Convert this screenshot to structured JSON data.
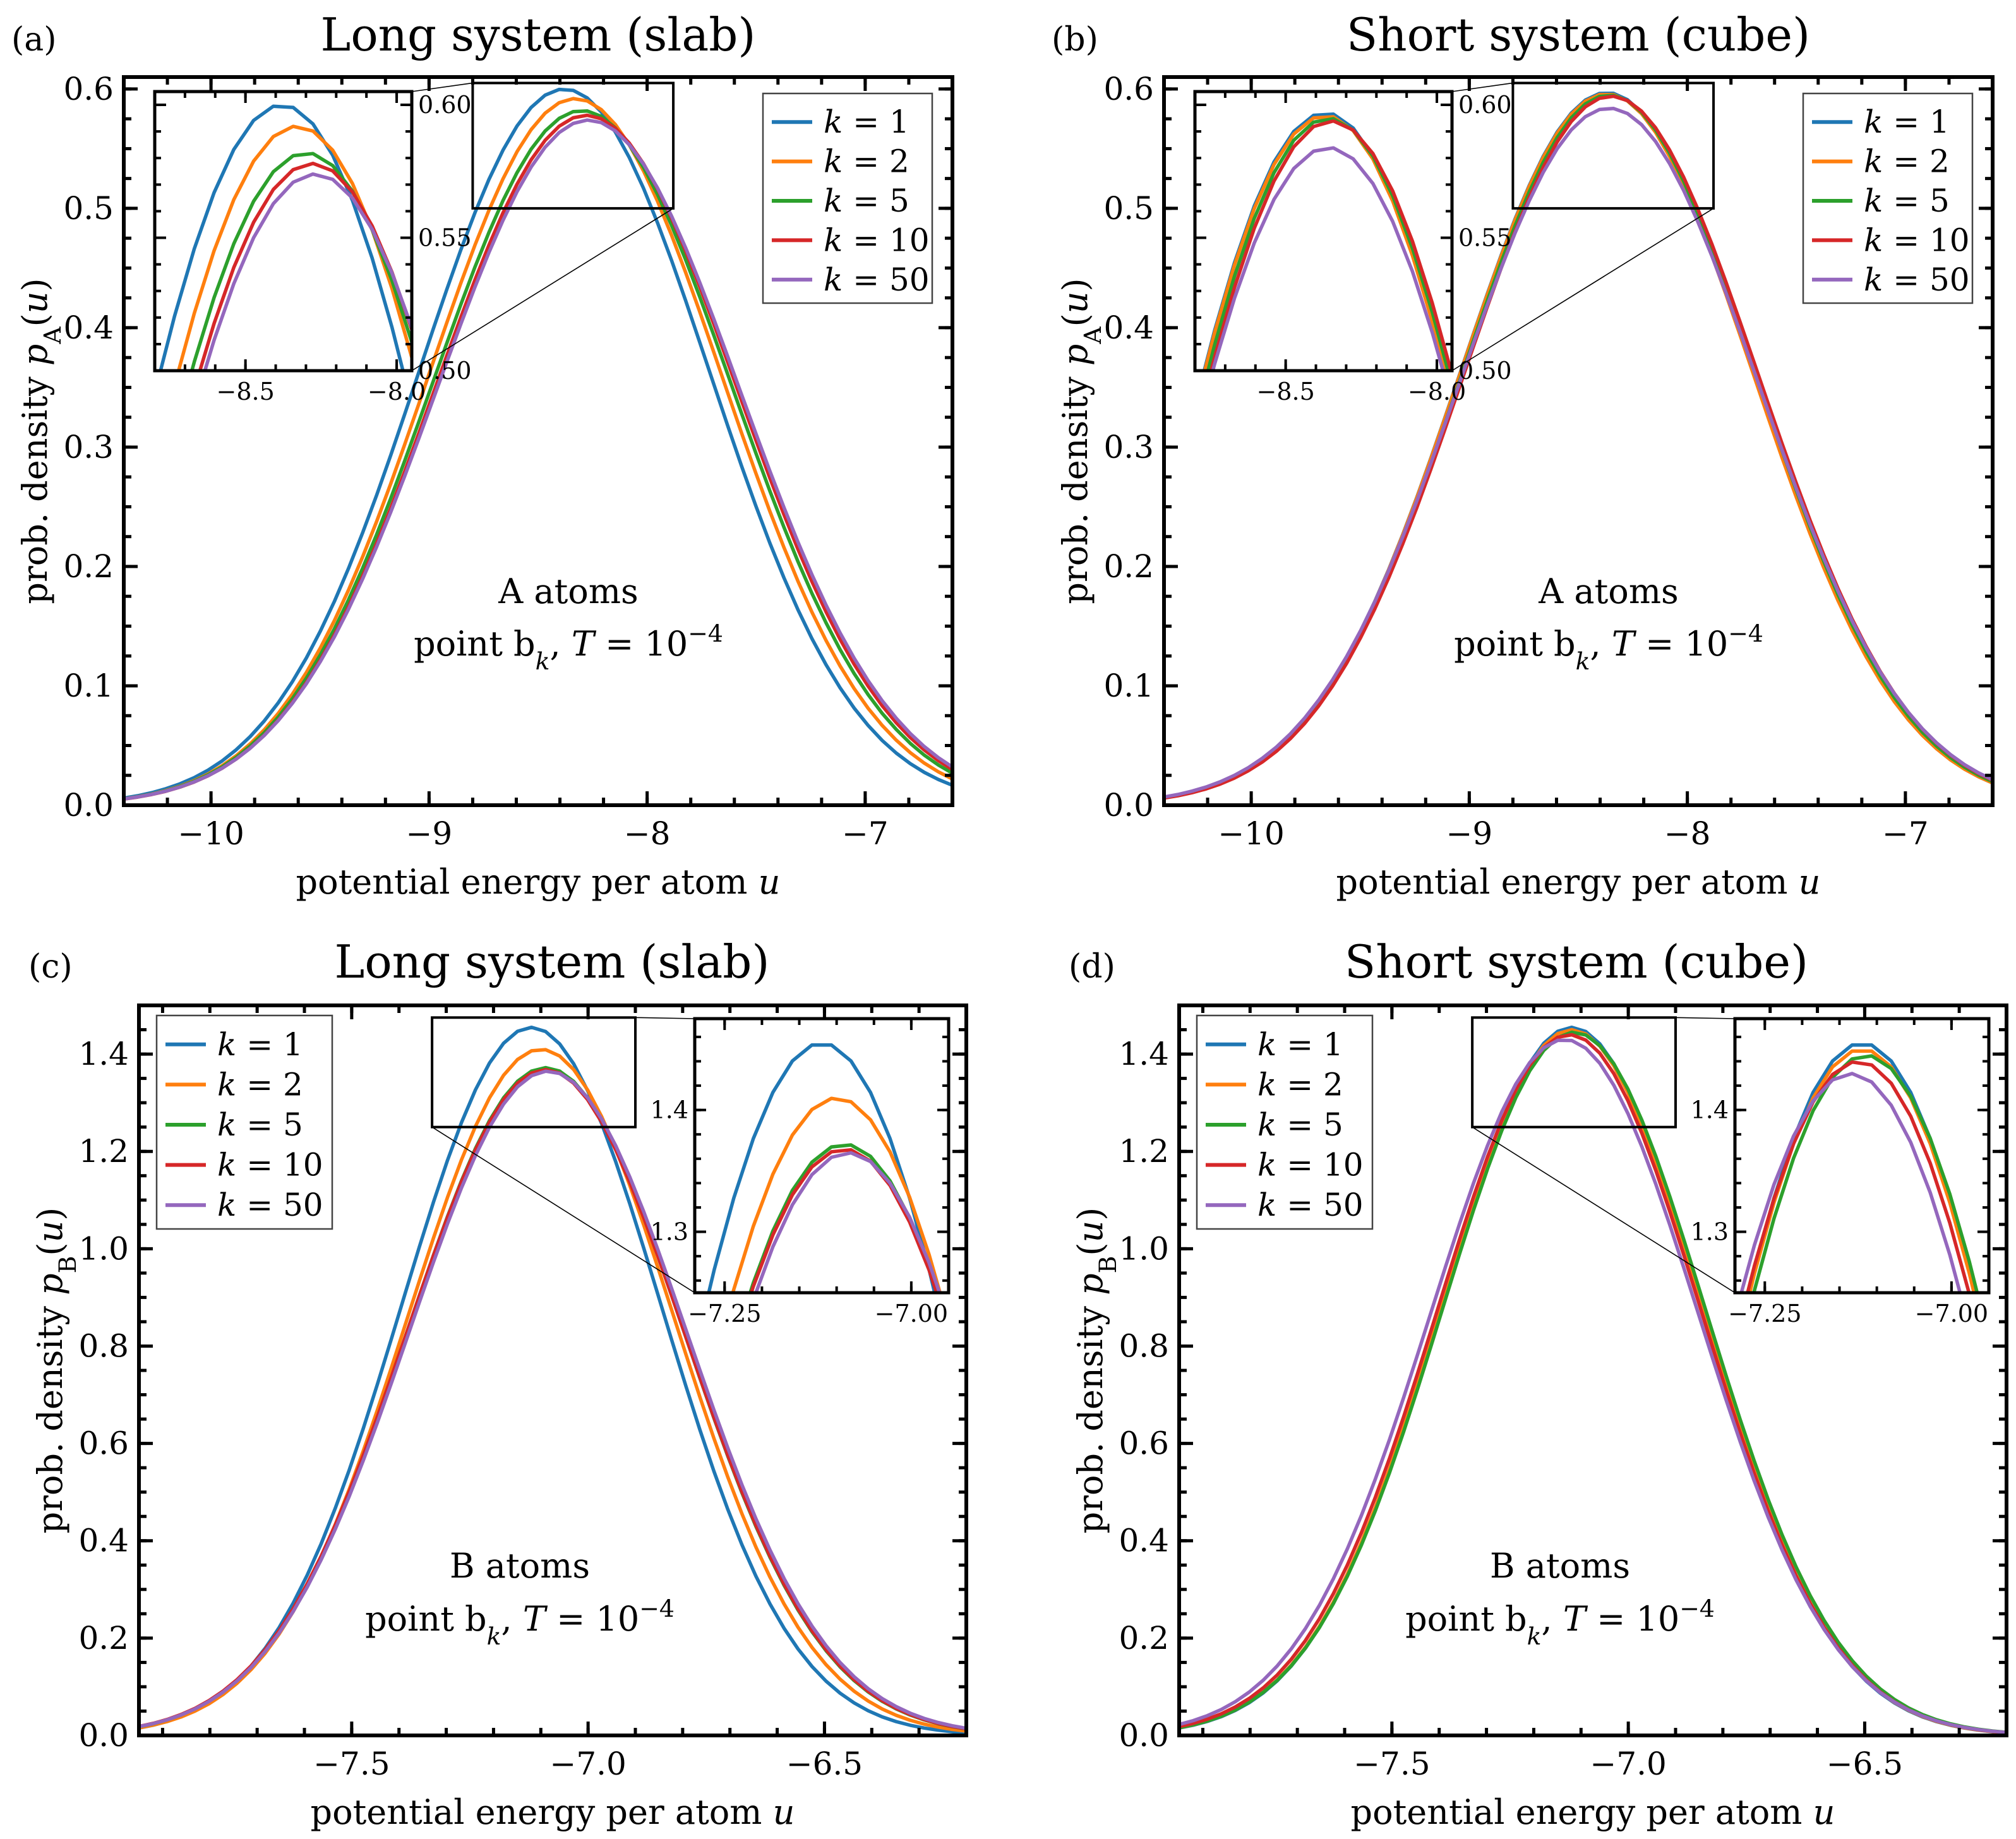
{
  "figure": {
    "colors": {
      "k1": "#1f77b4",
      "k2": "#ff7f0e",
      "k5": "#2ca02c",
      "k10": "#d62728",
      "k50": "#9467bd"
    }
  },
  "chart_data": [
    {
      "type": "line",
      "panel_label": "(a)",
      "title": "Long system (slab)",
      "xlabel": "potential energy per atom u",
      "ylabel": "prob. density pA(u)",
      "xlim": [
        -10.4,
        -6.6
      ],
      "ylim": [
        0.0,
        0.61
      ],
      "xticks": [
        -10,
        -9,
        -8,
        -7
      ],
      "xtick_labels": [
        "−10",
        "−9",
        "−8",
        "−7"
      ],
      "yticks": [
        0.0,
        0.1,
        0.2,
        0.3,
        0.4,
        0.5,
        0.6
      ],
      "ytick_labels": [
        "0.0",
        "0.1",
        "0.2",
        "0.3",
        "0.4",
        "0.5",
        "0.6"
      ],
      "legend_position": "top-right",
      "annotation": [
        "A atoms",
        "point bk, T = 10−4"
      ],
      "series": [
        {
          "name": "k = 1",
          "mu": -8.38,
          "sigma": 0.665,
          "peak": 0.6
        },
        {
          "name": "k = 2",
          "mu": -8.33,
          "sigma": 0.674,
          "peak": 0.592
        },
        {
          "name": "k = 5",
          "mu": -8.3,
          "sigma": 0.685,
          "peak": 0.582
        },
        {
          "name": "k = 10",
          "mu": -8.28,
          "sigma": 0.69,
          "peak": 0.578
        },
        {
          "name": "k = 50",
          "mu": -8.27,
          "sigma": 0.695,
          "peak": 0.574
        }
      ],
      "zoom_box": {
        "xlim": [
          -8.8,
          -7.88
        ],
        "ylim": [
          0.5,
          0.605
        ]
      },
      "inset": {
        "position": "top-left",
        "xlim": [
          -8.8,
          -7.95
        ],
        "ylim": [
          0.5,
          0.605
        ],
        "xticks": [
          -8.5,
          -8.0
        ],
        "xtick_labels": [
          "−8.5",
          "−8.0"
        ],
        "yticks": [
          0.5,
          0.55,
          0.6
        ],
        "ytick_labels": [
          "0.50",
          "0.55",
          "0.60"
        ]
      }
    },
    {
      "type": "line",
      "panel_label": "(b)",
      "title": "Short system (cube)",
      "xlabel": "potential energy per atom u",
      "ylabel": "prob. density pA(u)",
      "xlim": [
        -10.4,
        -6.6
      ],
      "ylim": [
        0.0,
        0.61
      ],
      "xticks": [
        -10,
        -9,
        -8,
        -7
      ],
      "xtick_labels": [
        "−10",
        "−9",
        "−8",
        "−7"
      ],
      "yticks": [
        0.0,
        0.1,
        0.2,
        0.3,
        0.4,
        0.5,
        0.6
      ],
      "ytick_labels": [
        "0.0",
        "0.1",
        "0.2",
        "0.3",
        "0.4",
        "0.5",
        "0.6"
      ],
      "legend_position": "top-right",
      "annotation": [
        "A atoms",
        "point bk, T = 10−4"
      ],
      "series": [
        {
          "name": "k = 1",
          "mu": -8.37,
          "sigma": 0.672,
          "peak": 0.597
        },
        {
          "name": "k = 2",
          "mu": -8.37,
          "sigma": 0.672,
          "peak": 0.596
        },
        {
          "name": "k = 5",
          "mu": -8.36,
          "sigma": 0.674,
          "peak": 0.595
        },
        {
          "name": "k = 10",
          "mu": -8.35,
          "sigma": 0.676,
          "peak": 0.594
        },
        {
          "name": "k = 50",
          "mu": -8.36,
          "sigma": 0.684,
          "peak": 0.584
        }
      ],
      "zoom_box": {
        "xlim": [
          -8.8,
          -7.88
        ],
        "ylim": [
          0.5,
          0.605
        ]
      },
      "inset": {
        "position": "top-left",
        "xlim": [
          -8.8,
          -7.95
        ],
        "ylim": [
          0.5,
          0.605
        ],
        "xticks": [
          -8.5,
          -8.0
        ],
        "xtick_labels": [
          "−8.5",
          "−8.0"
        ],
        "yticks": [
          0.5,
          0.55,
          0.6
        ],
        "ytick_labels": [
          "0.50",
          "0.55",
          "0.60"
        ]
      }
    },
    {
      "type": "line",
      "panel_label": "(c)",
      "title": "Long system (slab)",
      "xlabel": "potential energy per atom u",
      "ylabel": "prob. density pB(u)",
      "xlim": [
        -7.95,
        -6.2
      ],
      "ylim": [
        0.0,
        1.5
      ],
      "xticks": [
        -7.5,
        -7.0,
        -6.5
      ],
      "xtick_labels": [
        "−7.5",
        "−7.0",
        "−6.5"
      ],
      "yticks": [
        0.0,
        0.2,
        0.4,
        0.6,
        0.8,
        1.0,
        1.2,
        1.4
      ],
      "ytick_labels": [
        "0.0",
        "0.2",
        "0.4",
        "0.6",
        "0.8",
        "1.0",
        "1.2",
        "1.4"
      ],
      "legend_position": "top-left",
      "annotation": [
        "B atoms",
        "point bk, T = 10−4"
      ],
      "series": [
        {
          "name": "k = 1",
          "mu": -7.12,
          "sigma": 0.275,
          "peak": 1.455
        },
        {
          "name": "k = 2",
          "mu": -7.1,
          "sigma": 0.283,
          "peak": 1.41
        },
        {
          "name": "k = 5",
          "mu": -7.09,
          "sigma": 0.292,
          "peak": 1.372
        },
        {
          "name": "k = 10",
          "mu": -7.09,
          "sigma": 0.293,
          "peak": 1.368
        },
        {
          "name": "k = 50",
          "mu": -7.085,
          "sigma": 0.294,
          "peak": 1.365
        }
      ],
      "zoom_box": {
        "xlim": [
          -7.33,
          -6.9
        ],
        "ylim": [
          1.25,
          1.475
        ]
      },
      "inset": {
        "position": "top-right",
        "xlim": [
          -7.29,
          -6.95
        ],
        "ylim": [
          1.25,
          1.475
        ],
        "xticks": [
          -7.25,
          -7.0
        ],
        "xtick_labels": [
          "−7.25",
          "−7.00"
        ],
        "yticks": [
          1.3,
          1.4
        ],
        "ytick_labels": [
          "1.3",
          "1.4"
        ]
      }
    },
    {
      "type": "line",
      "panel_label": "(d)",
      "title": "Short system (cube)",
      "xlabel": "potential energy per atom u",
      "ylabel": "prob. density pB(u)",
      "xlim": [
        -7.95,
        -6.2
      ],
      "ylim": [
        0.0,
        1.5
      ],
      "xticks": [
        -7.5,
        -7.0,
        -6.5
      ],
      "xtick_labels": [
        "−7.5",
        "−7.0",
        "−6.5"
      ],
      "yticks": [
        0.0,
        0.2,
        0.4,
        0.6,
        0.8,
        1.0,
        1.2,
        1.4
      ],
      "ytick_labels": [
        "0.0",
        "0.2",
        "0.4",
        "0.6",
        "0.8",
        "1.0",
        "1.2",
        "1.4"
      ],
      "legend_position": "top-left",
      "annotation": [
        "B atoms",
        "point bk, T = 10−4"
      ],
      "series": [
        {
          "name": "k = 1",
          "mu": -7.12,
          "sigma": 0.275,
          "peak": 1.455
        },
        {
          "name": "k = 2",
          "mu": -7.12,
          "sigma": 0.276,
          "peak": 1.45
        },
        {
          "name": "k = 5",
          "mu": -7.115,
          "sigma": 0.278,
          "peak": 1.445
        },
        {
          "name": "k = 10",
          "mu": -7.125,
          "sigma": 0.279,
          "peak": 1.44
        },
        {
          "name": "k = 50",
          "mu": -7.135,
          "sigma": 0.283,
          "peak": 1.43
        }
      ],
      "zoom_box": {
        "xlim": [
          -7.33,
          -6.9
        ],
        "ylim": [
          1.25,
          1.475
        ]
      },
      "inset": {
        "position": "top-right",
        "xlim": [
          -7.29,
          -6.95
        ],
        "ylim": [
          1.25,
          1.475
        ],
        "xticks": [
          -7.25,
          -7.0
        ],
        "xtick_labels": [
          "−7.25",
          "−7.00"
        ],
        "yticks": [
          1.3,
          1.4
        ],
        "ytick_labels": [
          "1.3",
          "1.4"
        ]
      }
    }
  ]
}
